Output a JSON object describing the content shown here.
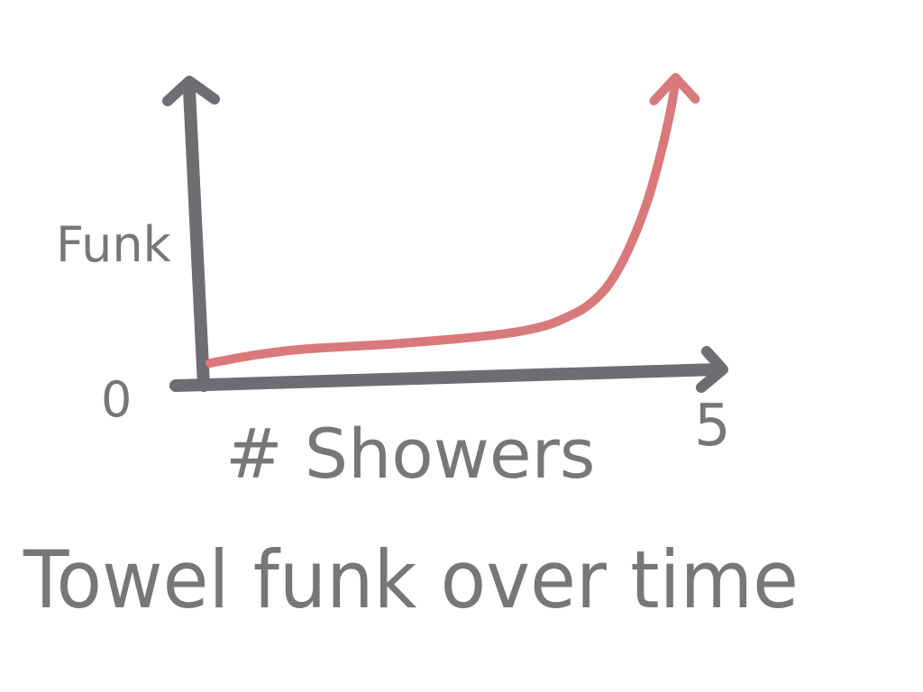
{
  "chart_data": {
    "type": "line",
    "title": "Towel funk over time",
    "xlabel": "# Showers",
    "ylabel": "Funk",
    "x_tick_labels": {
      "min": "0",
      "max": "5"
    },
    "xlim": [
      0,
      5
    ],
    "series": [
      {
        "color": "#d9797b",
        "points": [
          [
            0.0,
            0.0
          ],
          [
            0.5,
            0.03
          ],
          [
            1.0,
            0.05
          ],
          [
            2.0,
            0.07
          ],
          [
            3.0,
            0.1
          ],
          [
            3.5,
            0.13
          ],
          [
            3.8,
            0.17
          ],
          [
            4.0,
            0.21
          ],
          [
            4.2,
            0.28
          ],
          [
            4.4,
            0.4
          ],
          [
            4.6,
            0.57
          ],
          [
            4.75,
            0.75
          ],
          [
            4.85,
            0.9
          ],
          [
            4.9,
            1.0
          ]
        ]
      }
    ]
  },
  "colors": {
    "axis": "#6e6e72",
    "line": "#d9797b",
    "text": "#777777"
  }
}
